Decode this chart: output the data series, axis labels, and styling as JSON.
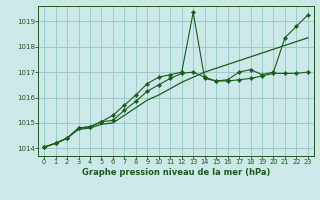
{
  "xlabel": "Graphe pression niveau de la mer (hPa)",
  "ylabel": "",
  "bg_color": "#cce8e8",
  "grid_color": "#99cccc",
  "line_color": "#1a5c1a",
  "xlim": [
    -0.5,
    23.5
  ],
  "ylim": [
    1013.7,
    1019.6
  ],
  "yticks": [
    1014,
    1015,
    1016,
    1017,
    1018,
    1019
  ],
  "xticks": [
    0,
    1,
    2,
    3,
    4,
    5,
    6,
    7,
    8,
    9,
    10,
    11,
    12,
    13,
    14,
    15,
    16,
    17,
    18,
    19,
    20,
    21,
    22,
    23
  ],
  "hours": [
    0,
    1,
    2,
    3,
    4,
    5,
    6,
    7,
    8,
    9,
    10,
    11,
    12,
    13,
    14,
    15,
    16,
    17,
    18,
    19,
    20,
    21,
    22,
    23
  ],
  "line1": [
    1014.05,
    1014.2,
    1014.4,
    1014.8,
    1014.85,
    1015.05,
    1015.3,
    1015.7,
    1016.1,
    1016.55,
    1016.8,
    1016.9,
    1017.0,
    1019.35,
    1016.75,
    1016.65,
    1016.7,
    1017.0,
    1017.1,
    1016.9,
    1017.0,
    1018.35,
    1018.8,
    1019.25
  ],
  "line2": [
    1014.05,
    1014.2,
    1014.4,
    1014.8,
    1014.85,
    1015.05,
    1015.1,
    1015.5,
    1015.85,
    1016.25,
    1016.5,
    1016.75,
    1016.95,
    1017.0,
    1016.8,
    1016.65,
    1016.65,
    1016.7,
    1016.75,
    1016.85,
    1016.95,
    1016.95,
    1016.95,
    1017.0
  ],
  "line3": [
    1014.05,
    1014.2,
    1014.4,
    1014.75,
    1014.8,
    1014.95,
    1015.0,
    1015.3,
    1015.6,
    1015.9,
    1016.1,
    1016.35,
    1016.6,
    1016.8,
    1017.0,
    1017.15,
    1017.3,
    1017.45,
    1017.6,
    1017.75,
    1017.9,
    1018.05,
    1018.2,
    1018.35
  ]
}
